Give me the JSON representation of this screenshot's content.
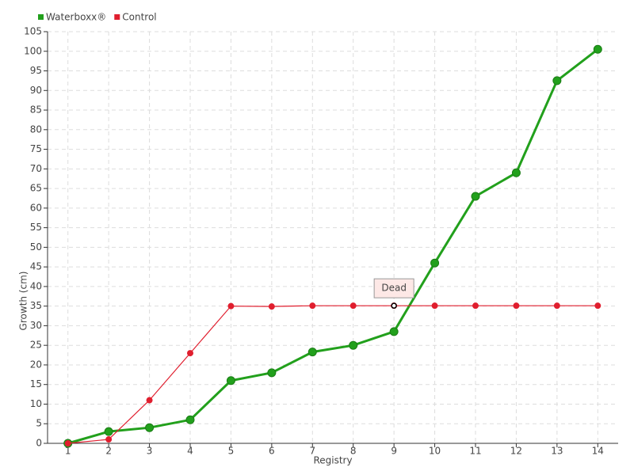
{
  "chart_data": {
    "type": "line",
    "x_label": "Registry",
    "y_label": "Growth (cm)",
    "categories": [
      "1",
      "2",
      "3",
      "4",
      "5",
      "6",
      "7",
      "8",
      "9",
      "10",
      "11",
      "12",
      "13",
      "14"
    ],
    "series": [
      {
        "name": "Waterboxx®",
        "color": "#22a01c",
        "values": [
          0,
          3,
          4,
          6,
          16,
          18,
          23.3,
          25,
          28.5,
          46,
          63,
          69,
          92.5,
          100.5
        ]
      },
      {
        "name": "Control",
        "color": "#e01e2e",
        "values": [
          0,
          1,
          11,
          23,
          35,
          34.9,
          35.1,
          35.1,
          35.1,
          35.1,
          35.1,
          35.1,
          35.1,
          35.1
        ]
      }
    ],
    "annotations": [
      {
        "text": "Dead",
        "series": "Control",
        "category": "9"
      }
    ],
    "ylim": [
      0,
      105
    ],
    "yticks": [
      0,
      5,
      10,
      15,
      20,
      25,
      30,
      35,
      40,
      45,
      50,
      55,
      60,
      65,
      70,
      75,
      80,
      85,
      90,
      95,
      100,
      105
    ],
    "grid": true,
    "legend": "top-left"
  }
}
